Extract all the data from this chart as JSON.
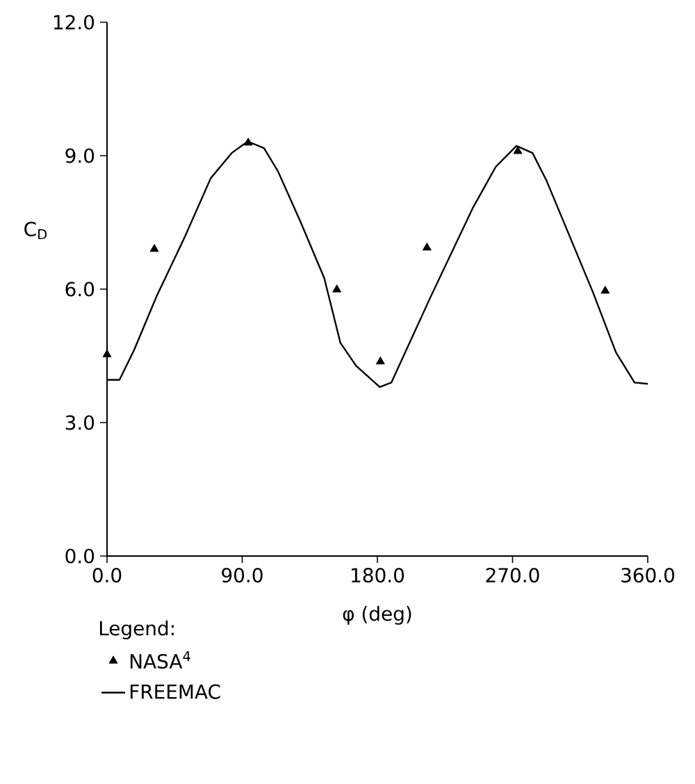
{
  "chart_data": {
    "type": "line",
    "xlabel": "φ (deg)",
    "ylabel": "C$_{D}$",
    "legend_title": "Legend:",
    "legend": "bottom",
    "xlim": [
      0,
      360
    ],
    "ylim": [
      0,
      12
    ],
    "xticks": [
      {
        "value": 0,
        "label": "0.0"
      },
      {
        "value": 90,
        "label": "90.0"
      },
      {
        "value": 180,
        "label": "180.0"
      },
      {
        "value": 270,
        "label": "270.0"
      },
      {
        "value": 360,
        "label": "360.0"
      }
    ],
    "yticks": [
      {
        "value": 0,
        "label": "0.0"
      },
      {
        "value": 3,
        "label": "3.0"
      },
      {
        "value": 6,
        "label": "6.0"
      },
      {
        "value": 9,
        "label": "9.0"
      },
      {
        "value": 12,
        "label": "12.0"
      }
    ],
    "grid": false,
    "series": [
      {
        "name": "NASA$^{4}$",
        "type": "scatter",
        "marker": "triangle",
        "color": "#000000",
        "x": [
          0,
          31.5,
          94,
          153,
          182,
          213,
          273.5,
          331.7
        ],
        "values": [
          4.53,
          6.9,
          9.29,
          5.99,
          4.37,
          6.93,
          9.1,
          5.96
        ]
      },
      {
        "name": "FREEMAC",
        "marker": "none",
        "line_style": "solid",
        "color": "#000000",
        "x": [
          0,
          8.3,
          18,
          33,
          52,
          69,
          83,
          93.7,
          104.5,
          113.8,
          129,
          144.6,
          155.4,
          166,
          181.6,
          189.3,
          215.5,
          243.3,
          258.8,
          272.6,
          283.3,
          292.6,
          308,
          323.4,
          338.8,
          351.2,
          360
        ],
        "values": [
          3.96,
          3.96,
          4.63,
          5.84,
          7.19,
          8.49,
          9.06,
          9.32,
          9.17,
          8.65,
          7.5,
          6.25,
          4.79,
          4.27,
          3.8,
          3.9,
          5.83,
          7.81,
          8.75,
          9.22,
          9.06,
          8.44,
          7.19,
          5.94,
          4.58,
          3.9,
          3.87
        ]
      }
    ]
  }
}
